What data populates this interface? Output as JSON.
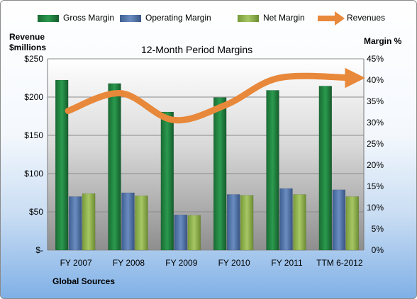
{
  "chart_data": {
    "type": "bar",
    "title": "12-Month Period Margins",
    "left_axis_label_line1": "Revenue",
    "left_axis_label_line2": "$millions",
    "right_axis_label": "Margin %",
    "footer_label": "Global Sources",
    "categories": [
      "FY 2007",
      "FY 2008",
      "FY 2009",
      "FY 2010",
      "FY 2011",
      "TTM 6-2012"
    ],
    "left_ticks": [
      "$-",
      "$50",
      "$100",
      "$150",
      "$200",
      "$250"
    ],
    "right_ticks": [
      "0%",
      "5%",
      "10%",
      "15%",
      "20%",
      "25%",
      "30%",
      "35%",
      "40%",
      "45%"
    ],
    "ylim_left": [
      0,
      250
    ],
    "ylim_right": [
      0,
      45
    ],
    "series": [
      {
        "name": "Gross Margin",
        "axis": "right",
        "values": [
          40.0,
          39.2,
          32.5,
          35.9,
          37.6,
          38.6
        ]
      },
      {
        "name": "Operating Margin",
        "axis": "right",
        "values": [
          12.6,
          13.5,
          8.3,
          13.1,
          14.5,
          14.2
        ]
      },
      {
        "name": "Net Margin",
        "axis": "right",
        "values": [
          13.3,
          12.8,
          8.2,
          12.9,
          13.1,
          12.6
        ]
      },
      {
        "name": "Revenues",
        "axis": "left",
        "type": "line",
        "values": [
          182,
          205,
          170,
          190,
          225,
          225
        ]
      }
    ],
    "colors": {
      "gross": "#1f7a3c",
      "operating": "#4f73a8",
      "net": "#8fb04a",
      "revenue": "#e8883a"
    },
    "grid": true,
    "legend_position": "top"
  }
}
